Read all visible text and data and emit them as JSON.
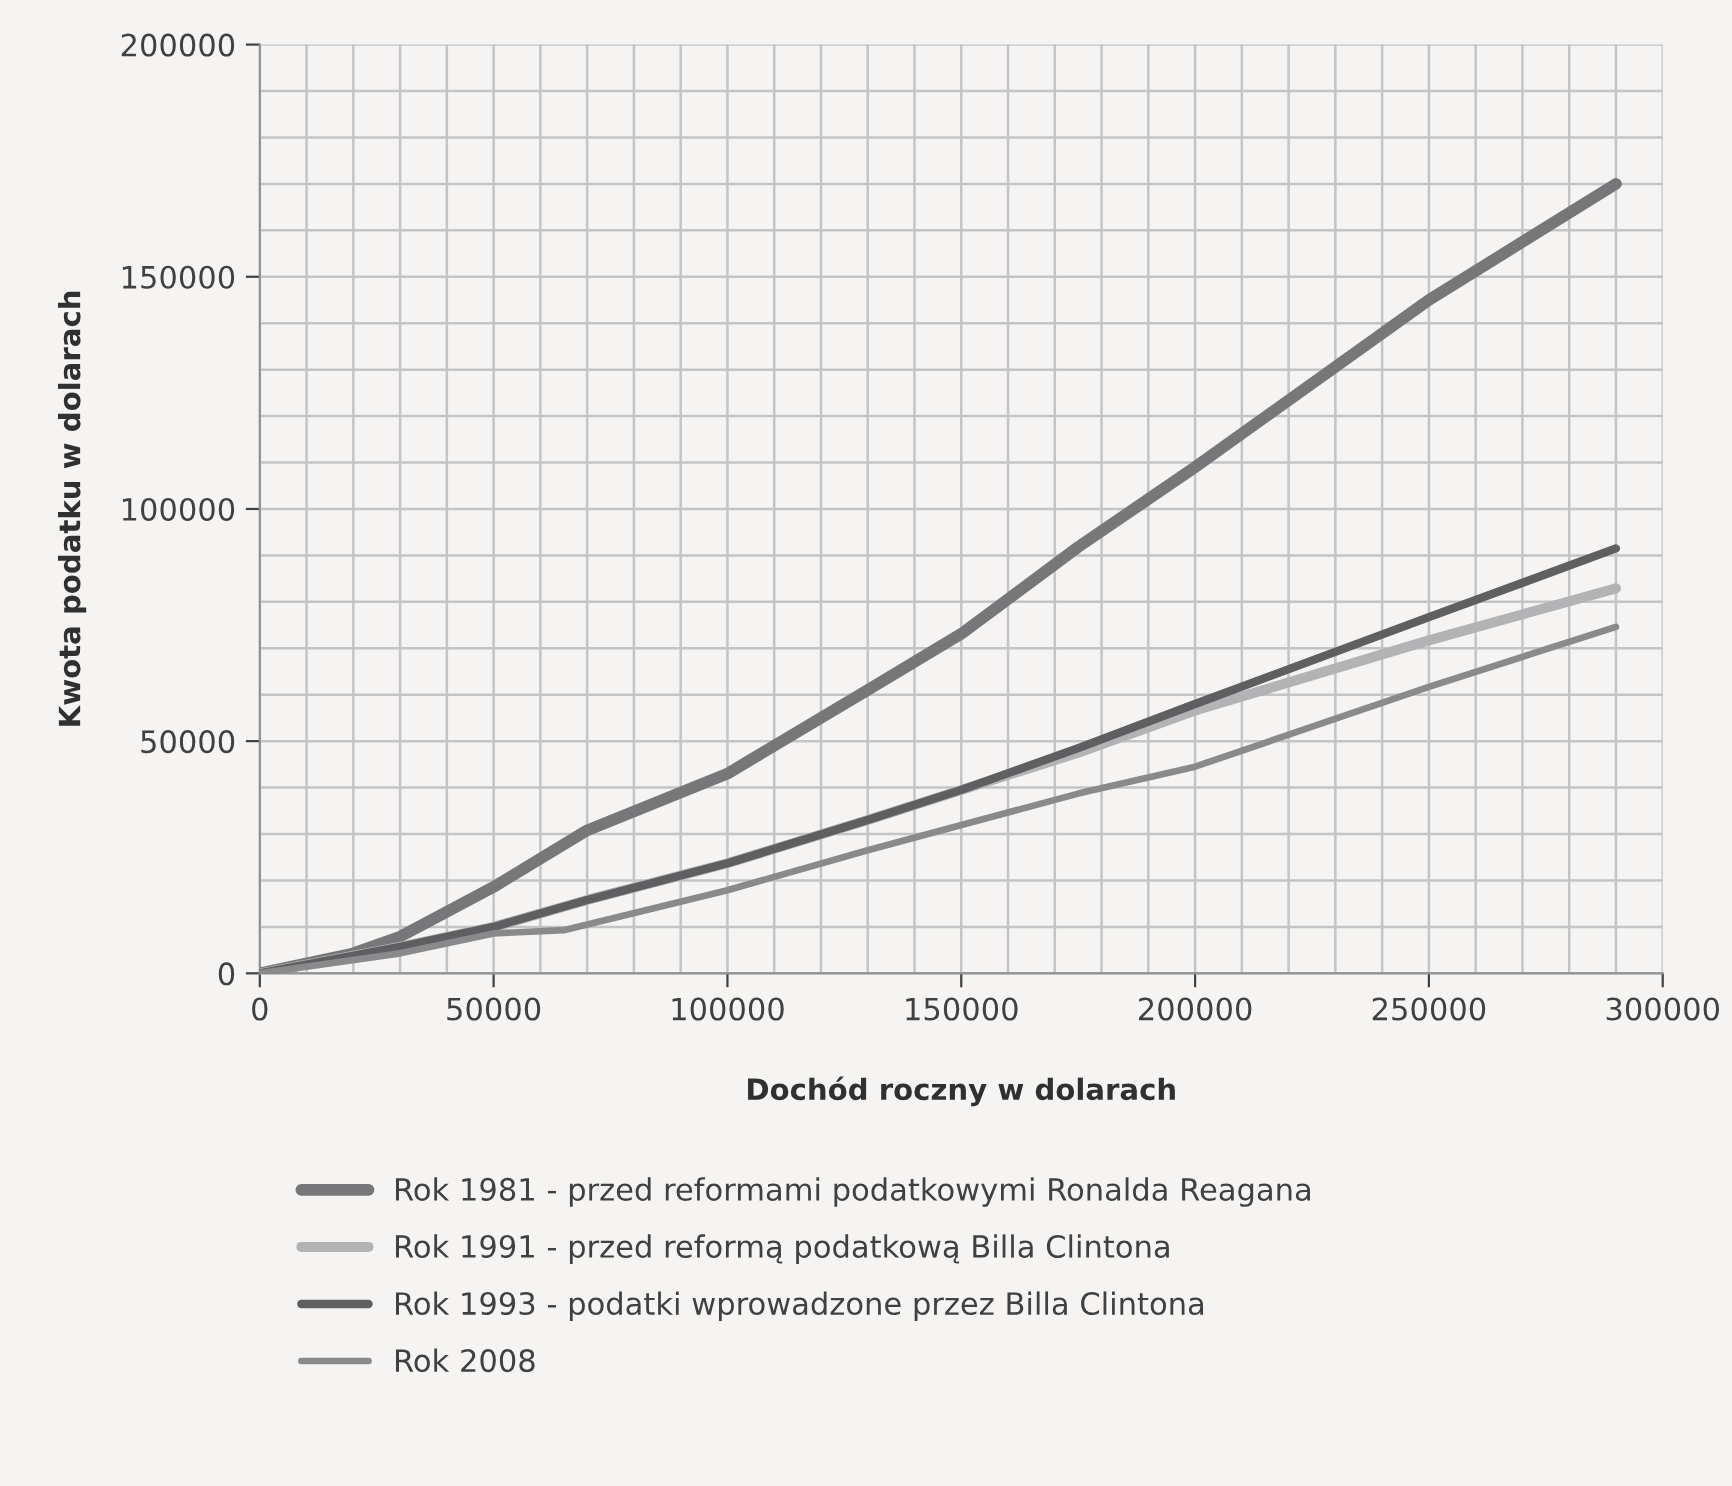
{
  "chart_data": {
    "type": "line",
    "xlabel": "Dochód roczny w dolarach",
    "ylabel": "Kwota podatku w dolarach",
    "xlim": [
      0,
      300000
    ],
    "ylim": [
      0,
      200000
    ],
    "xticks": [
      0,
      50000,
      100000,
      150000,
      200000,
      250000,
      300000
    ],
    "yticks": [
      0,
      50000,
      100000,
      150000,
      200000
    ],
    "grid": true,
    "legend": "bottom",
    "marker": "none",
    "line_style": "solid",
    "series": [
      {
        "name": "Rok 1981 - przed reformami podatkowymi Ronalda Reagana",
        "color": "#77777a",
        "x": [
          0,
          20000,
          30000,
          50000,
          70000,
          100000,
          130000,
          150000,
          175000,
          200000,
          250000,
          290000
        ],
        "values": [
          0,
          4300,
          7900,
          18600,
          30800,
          43000,
          61000,
          73100,
          91800,
          109000,
          145000,
          170000
        ]
      },
      {
        "name": "Rok 1991 - przed reformą podatkową Billa Clintona",
        "color": "#b3b3b5",
        "x": [
          0,
          30000,
          50000,
          70000,
          100000,
          130000,
          150000,
          175000,
          200000,
          250000,
          290000
        ],
        "values": [
          0,
          5700,
          10000,
          15800,
          23700,
          33000,
          39500,
          47500,
          56600,
          71700,
          82900
        ]
      },
      {
        "name": "Rok 1993 - podatki wprowadzone przez Billa Clintona",
        "color": "#5f5f62",
        "x": [
          0,
          30000,
          50000,
          70000,
          100000,
          130000,
          150000,
          175000,
          200000,
          250000,
          290000
        ],
        "values": [
          0,
          5700,
          10000,
          15800,
          23700,
          33000,
          39500,
          48500,
          58000,
          76700,
          91500
        ]
      },
      {
        "name": "Rok 2008",
        "color": "#8a8a8d",
        "x": [
          0,
          30000,
          50000,
          65000,
          100000,
          130000,
          175000,
          200000,
          250000,
          290000
        ],
        "values": [
          0,
          4300,
          8600,
          9300,
          17900,
          26500,
          38700,
          44500,
          61700,
          74600
        ]
      }
    ]
  }
}
